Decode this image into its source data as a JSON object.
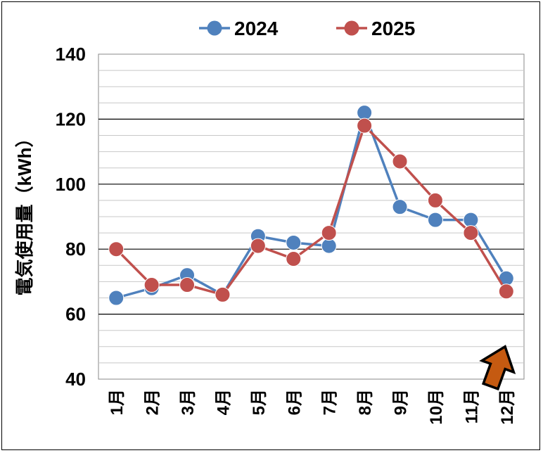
{
  "chart_data": {
    "type": "line",
    "ylabel": "電気使用量（kWh）",
    "xlabel": "",
    "ylim": [
      40,
      140
    ],
    "yticks": [
      40,
      60,
      80,
      100,
      120,
      140
    ],
    "grid": "horizontal",
    "legend": "top",
    "categories": [
      "1月",
      "2月",
      "3月",
      "4月",
      "5月",
      "6月",
      "7月",
      "8月",
      "9月",
      "10月",
      "11月",
      "12月"
    ],
    "series": [
      {
        "name": "2024",
        "color": "#4f81bd",
        "values": [
          65,
          68,
          72,
          66,
          84,
          82,
          81,
          122,
          93,
          89,
          89,
          71
        ]
      },
      {
        "name": "2025",
        "color": "#c0504d",
        "values": [
          80,
          69,
          69,
          66,
          81,
          77,
          85,
          118,
          107,
          95,
          85,
          67
        ]
      }
    ],
    "annotation": {
      "type": "arrow",
      "icon": "arrow-up-icon",
      "color": "#c55a11",
      "near": "12月"
    }
  }
}
